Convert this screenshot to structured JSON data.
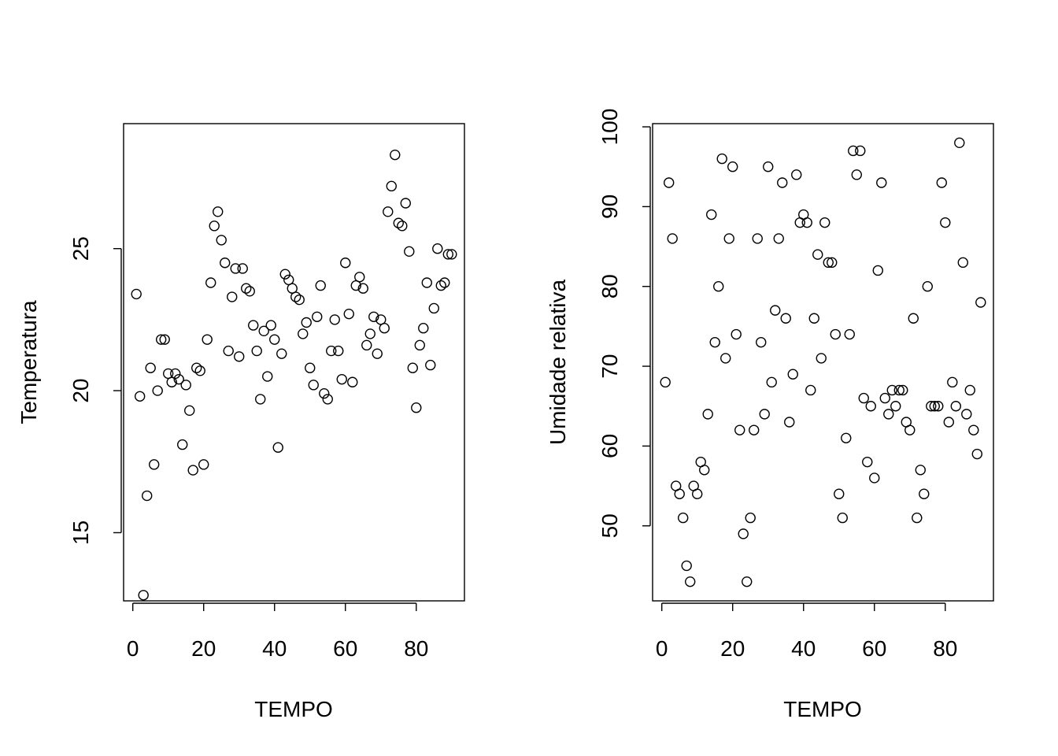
{
  "chart_data": [
    {
      "type": "scatter",
      "xlabel": "TEMPO",
      "ylabel": "Temperatura",
      "xlim": [
        -2.6,
        93.6
      ],
      "ylim": [
        12.6,
        29.4
      ],
      "xticks": [
        "0",
        "20",
        "40",
        "60",
        "80"
      ],
      "yticks": [
        "15",
        "20",
        "25"
      ],
      "grid": false,
      "points": {
        "x": [
          1,
          2,
          3,
          4,
          5,
          6,
          7,
          8,
          9,
          10,
          11,
          12,
          13,
          14,
          15,
          16,
          17,
          18,
          19,
          20,
          21,
          22,
          23,
          24,
          25,
          26,
          27,
          28,
          29,
          30,
          31,
          32,
          33,
          34,
          35,
          36,
          37,
          38,
          39,
          40,
          41,
          42,
          43,
          44,
          45,
          46,
          47,
          48,
          49,
          50,
          51,
          52,
          53,
          54,
          55,
          56,
          57,
          58,
          59,
          60,
          61,
          62,
          63,
          64,
          65,
          66,
          67,
          68,
          69,
          70,
          71,
          72,
          73,
          74,
          75,
          76,
          77,
          78,
          79,
          80,
          81,
          82,
          83,
          84,
          85,
          86,
          87,
          88,
          89,
          90
        ],
        "y": [
          23.4,
          19.8,
          12.8,
          16.3,
          20.8,
          17.4,
          20.0,
          21.8,
          21.8,
          20.6,
          20.3,
          20.6,
          20.4,
          18.1,
          20.2,
          19.3,
          17.2,
          20.8,
          20.7,
          17.4,
          21.8,
          23.8,
          25.8,
          26.3,
          25.3,
          24.5,
          21.4,
          23.3,
          24.3,
          21.2,
          24.3,
          23.6,
          23.5,
          22.3,
          21.4,
          19.7,
          22.1,
          20.5,
          22.3,
          21.8,
          18.0,
          21.3,
          24.1,
          23.9,
          23.6,
          23.3,
          23.2,
          22.0,
          22.4,
          20.8,
          20.2,
          22.6,
          23.7,
          19.9,
          19.7,
          21.4,
          22.5,
          21.4,
          20.4,
          24.5,
          22.7,
          20.3,
          23.7,
          24.0,
          23.6,
          21.6,
          22.0,
          22.6,
          21.3,
          22.5,
          22.2,
          26.3,
          27.2,
          28.3,
          25.9,
          25.8,
          26.6,
          24.9,
          20.8,
          19.4,
          21.6,
          22.2,
          23.8,
          20.9,
          22.9,
          25.0,
          23.7,
          23.8,
          24.8,
          24.8
        ]
      }
    },
    {
      "type": "scatter",
      "xlabel": "TEMPO",
      "ylabel": "Umidade relativa",
      "xlim": [
        -2.6,
        93.6
      ],
      "ylim": [
        40.6,
        100.4
      ],
      "xticks": [
        "0",
        "20",
        "40",
        "60",
        "80"
      ],
      "yticks": [
        "50",
        "60",
        "70",
        "80",
        "90",
        "100"
      ],
      "grid": false,
      "points": {
        "x": [
          1,
          2,
          3,
          4,
          5,
          6,
          7,
          8,
          9,
          10,
          11,
          12,
          13,
          14,
          15,
          16,
          17,
          18,
          19,
          20,
          21,
          22,
          23,
          24,
          25,
          26,
          27,
          28,
          29,
          30,
          31,
          32,
          33,
          34,
          35,
          36,
          37,
          38,
          39,
          40,
          41,
          42,
          43,
          44,
          45,
          46,
          47,
          48,
          49,
          50,
          51,
          52,
          53,
          54,
          55,
          56,
          57,
          58,
          59,
          60,
          61,
          62,
          63,
          64,
          65,
          66,
          67,
          68,
          69,
          70,
          71,
          72,
          73,
          74,
          75,
          76,
          77,
          78,
          79,
          80,
          81,
          82,
          83,
          84,
          85,
          86,
          87,
          88,
          89,
          90
        ],
        "y": [
          68,
          93,
          86,
          55,
          54,
          51,
          45,
          43,
          55,
          54,
          58,
          57,
          64,
          89,
          73,
          80,
          96,
          71,
          86,
          95,
          74,
          62,
          49,
          43,
          51,
          62,
          86,
          73,
          64,
          95,
          68,
          77,
          86,
          93,
          76,
          63,
          69,
          94,
          88,
          89,
          88,
          67,
          76,
          84,
          71,
          88,
          83,
          83,
          74,
          54,
          51,
          61,
          74,
          97,
          94,
          97,
          66,
          58,
          65,
          56,
          82,
          93,
          66,
          64,
          67,
          65,
          67,
          67,
          63,
          62,
          76,
          51,
          57,
          54,
          80,
          65,
          65,
          65,
          93,
          88,
          63,
          68,
          65,
          98,
          83,
          64,
          67,
          62,
          59,
          78
        ]
      }
    }
  ]
}
